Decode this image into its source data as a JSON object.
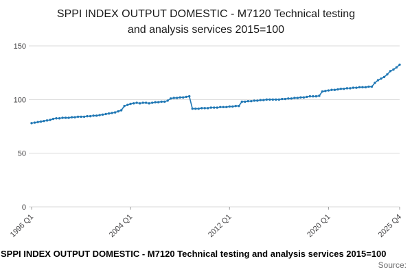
{
  "title_lines": [
    "SPPI INDEX OUTPUT DOMESTIC - M7120 Technical testing",
    "and analysis services 2015=100"
  ],
  "footer": {
    "title": "SPPI INDEX OUTPUT DOMESTIC - M7120 Technical testing and analysis services 2015=100",
    "source": "Source:"
  },
  "chart_data": {
    "type": "line",
    "title": "SPPI INDEX OUTPUT DOMESTIC - M7120 Technical testing and analysis services 2015=100",
    "x_start": "1996 Q1",
    "x_end": "2025 Q4",
    "frequency": "quarterly",
    "ylim": [
      0,
      150
    ],
    "yticks": [
      0,
      50,
      100,
      150
    ],
    "xticks": [
      "1996 Q1",
      "2004 Q1",
      "2012 Q1",
      "2020 Q1",
      "2025 Q4"
    ],
    "grid": "horizontal",
    "legend": "none",
    "marker": "circle",
    "line_color": "#1f77b4",
    "series": [
      {
        "name": "SPPI INDEX OUTPUT DOMESTIC - M7120 Technical testing and analysis services",
        "start": "1996 Q1",
        "values": [
          78,
          78.5,
          79,
          79.5,
          80,
          80.5,
          81,
          82,
          82.5,
          82.5,
          83,
          83,
          83,
          83.5,
          83.5,
          84,
          84,
          84,
          84.5,
          84.5,
          85,
          85,
          85.5,
          86,
          86.5,
          87,
          87.5,
          88,
          89,
          90,
          94,
          95,
          96,
          96.5,
          97,
          96.5,
          97,
          97,
          96.5,
          97,
          97.5,
          97.5,
          98,
          98,
          99,
          101,
          101.5,
          101.5,
          102,
          102,
          102.5,
          103,
          91.5,
          91.5,
          91.5,
          92,
          92,
          92,
          92.5,
          92.5,
          92.5,
          93,
          93,
          93,
          93.5,
          93.5,
          94,
          94,
          98,
          98,
          98.5,
          98.5,
          99,
          99,
          99.5,
          99.5,
          100,
          100,
          100,
          100,
          100,
          100.5,
          100.5,
          101,
          101,
          101.5,
          101.5,
          102,
          102,
          102.5,
          103,
          103,
          103,
          103.5,
          107.5,
          108,
          108.5,
          109,
          109,
          109.5,
          110,
          110,
          110.5,
          110.5,
          111,
          111,
          111.5,
          111.5,
          111.5,
          112,
          112,
          115.5,
          118,
          119.5,
          121,
          123.5,
          126.5,
          128,
          130,
          132.5
        ]
      }
    ]
  }
}
